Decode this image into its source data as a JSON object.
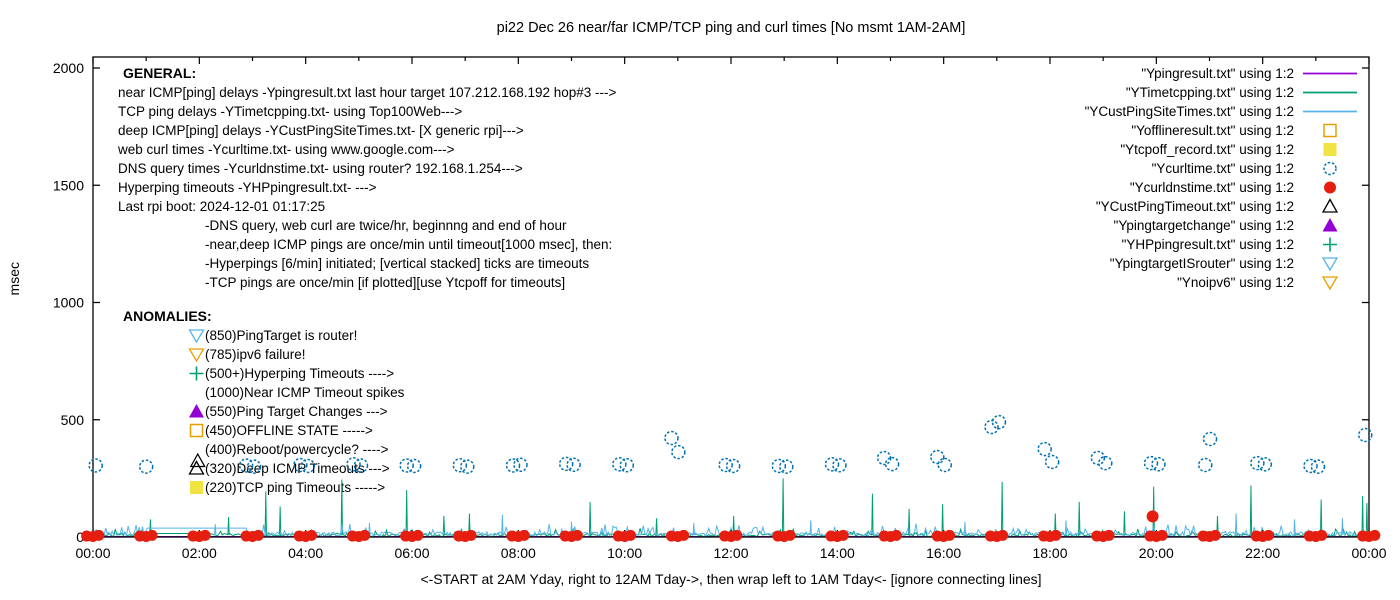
{
  "title": "pi22 Dec 26  near/far ICMP/TCP ping and curl times [No msmt 1AM-2AM]",
  "xnote": "<-START at 2AM Yday, right to 12AM Tday->, then wrap left to 1AM Tday<- [ignore connecting lines]",
  "general": {
    "header": "GENERAL:",
    "lines": [
      "near ICMP[ping] delays -Ypingresult.txt last hour target 107.212.168.192 hop#3 --->",
      "TCP ping delays -YTimetcpping.txt- using Top100Web--->",
      "deep ICMP[ping] delays -YCustPingSiteTimes.txt- [X generic rpi]--->",
      "web curl times -Ycurltime.txt- using www.google.com--->",
      "DNS query times -Ycurldnstime.txt- using router? 192.168.1.254--->",
      "Hyperping timeouts -YHPpingresult.txt- --->",
      "Last rpi boot: 2024-12-01 01:17:25"
    ],
    "notes": [
      "-DNS query, web curl are twice/hr, beginnng and end of hour",
      "-near,deep ICMP pings are once/min until timeout[1000 msec], then:",
      " -Hyperpings [6/min] initiated; [vertical stacked] ticks are timeouts",
      "-TCP pings are once/min [if plotted][use Ytcpoff for timeouts]"
    ]
  },
  "anomalies": {
    "header": "ANOMALIES:",
    "rows": [
      {
        "marker": "open-triangle-down",
        "color": "#56b4e9",
        "text": "(850)PingTarget is router!"
      },
      {
        "marker": "open-triangle-down",
        "color": "#e69f00",
        "text": "(785)ipv6 failure!"
      },
      {
        "marker": "plus",
        "color": "#009e73",
        "text": "(500+)Hyperping Timeouts ---->"
      },
      {
        "marker": "none",
        "color": "#000000",
        "text": "(1000)Near ICMP Timeout spikes"
      },
      {
        "marker": "filled-triangle-up",
        "color": "#9400d3",
        "text": "(550)Ping Target Changes --->"
      },
      {
        "marker": "open-square",
        "color": "#e69f00",
        "text": "(450)OFFLINE STATE ----->"
      },
      {
        "marker": "none",
        "color": "#000000",
        "text": "(400)Reboot/powercycle? ---->"
      },
      {
        "marker": "open-triangle-up",
        "color": "#000000",
        "text": "(320)Deep ICMP Timeouts --->"
      },
      {
        "marker": "filled-square",
        "color": "#f0e442",
        "text": "(220)TCP ping Timeouts ----->"
      }
    ]
  },
  "legend": {
    "entries": [
      {
        "label": "\"Ypingresult.txt\" using 1:2",
        "swatch": "line",
        "color": "#9400d3"
      },
      {
        "label": "\"YTimetcpping.txt\" using 1:2",
        "swatch": "line",
        "color": "#009e73"
      },
      {
        "label": "\"YCustPingSiteTimes.txt\" using 1:2",
        "swatch": "line",
        "color": "#56b4e9"
      },
      {
        "label": "\"Yofflineresult.txt\" using 1:2",
        "swatch": "open-square",
        "color": "#e69f00"
      },
      {
        "label": "\"Ytcpoff_record.txt\" using 1:2",
        "swatch": "filled-square",
        "color": "#f0e442"
      },
      {
        "label": "\"Ycurltime.txt\" using 1:2",
        "swatch": "open-circle",
        "color": "#0072b2"
      },
      {
        "label": "\"Ycurldnstime.txt\" using 1:2",
        "swatch": "filled-circle",
        "color": "#e51e10"
      },
      {
        "label": "\"YCustPingTimeout.txt\" using 1:2",
        "swatch": "open-triangle-up",
        "color": "#000000"
      },
      {
        "label": "\"Ypingtargetchange\" using 1:2",
        "swatch": "filled-triangle-up",
        "color": "#9400d3"
      },
      {
        "label": "\"YHPpingresult.txt\" using 1:2",
        "swatch": "plus",
        "color": "#009e73"
      },
      {
        "label": "\"YpingtargetISrouter\" using 1:2",
        "swatch": "open-triangle-down",
        "color": "#56b4e9"
      },
      {
        "label": "\"Ynoipv6\" using 1:2",
        "swatch": "open-triangle-down",
        "color": "#e69f00"
      }
    ]
  },
  "chart_data": {
    "type": "line+scatter time series",
    "title": "pi22 Dec 26  near/far ICMP/TCP ping and curl times [No msmt 1AM-2AM]",
    "ylabel": "msec",
    "xlabel": "",
    "grid": false,
    "legend_position": "top-right, outside-style column",
    "y_axis": {
      "range": [
        0,
        2000
      ],
      "ticks": [
        0,
        500,
        1000,
        1500,
        2000
      ],
      "tick_labels": [
        "0",
        "500",
        "1000",
        "1500",
        "2000"
      ]
    },
    "x_axis": {
      "range_hours": [
        0,
        24
      ],
      "major_every_hours": 2,
      "minor_every_hours": 1,
      "tick_labels": [
        "00:00",
        "02:00",
        "04:00",
        "06:00",
        "08:00",
        "10:00",
        "12:00",
        "14:00",
        "16:00",
        "18:00",
        "20:00",
        "22:00",
        "00:00"
      ]
    },
    "series": [
      {
        "name": "Ypingresult.txt (near ICMP ping)",
        "type": "line",
        "color": "#9400d3",
        "description": "flat baseline ~2 msec across full range"
      },
      {
        "name": "YTimetcpping.txt (TCP ping)",
        "type": "noisy-line",
        "color": "#009e73",
        "noise_base_msec": [
          1,
          14
        ],
        "gap_hours": [
          1.0,
          2.05
        ],
        "gap_flat_msec": 15,
        "spikes_hour_msec": [
          [
            1.08,
            75
          ],
          [
            2.55,
            85
          ],
          [
            3.25,
            195
          ],
          [
            3.52,
            130
          ],
          [
            4.68,
            245
          ],
          [
            5.9,
            200
          ],
          [
            6.6,
            90
          ],
          [
            7.08,
            100
          ],
          [
            9.35,
            150
          ],
          [
            10.6,
            80
          ],
          [
            12.05,
            90
          ],
          [
            12.98,
            250
          ],
          [
            14.66,
            185
          ],
          [
            15.35,
            120
          ],
          [
            15.98,
            140
          ],
          [
            17.1,
            235
          ],
          [
            18.1,
            100
          ],
          [
            18.55,
            150
          ],
          [
            19.4,
            110
          ],
          [
            19.95,
            215
          ],
          [
            21.15,
            90
          ],
          [
            21.78,
            220
          ],
          [
            23.1,
            160
          ],
          [
            23.88,
            175
          ],
          [
            23.96,
            145
          ]
        ]
      },
      {
        "name": "YCustPingSiteTimes.txt (deep ICMP ping)",
        "type": "noisy-line",
        "color": "#56b4e9",
        "noise_base_msec": [
          4,
          22
        ],
        "gap_hours": [
          1.0,
          2.9
        ],
        "gap_flat_msec": 38,
        "spikes_hour_msec": [
          [
            2.3,
            55
          ],
          [
            5.2,
            60
          ],
          [
            7.7,
            95
          ],
          [
            9.0,
            65
          ],
          [
            11.3,
            60
          ],
          [
            13.5,
            70
          ],
          [
            16.4,
            65
          ],
          [
            18.3,
            70
          ],
          [
            21.5,
            100
          ],
          [
            22.6,
            75
          ],
          [
            23.5,
            80
          ]
        ]
      },
      {
        "name": "Ycurltime.txt (web curl)",
        "type": "scatter-open-circle",
        "color": "#0072b2",
        "points_hour_msec": [
          [
            0.05,
            305
          ],
          [
            1.0,
            300
          ],
          [
            2.88,
            305
          ],
          [
            3.03,
            300
          ],
          [
            3.9,
            307
          ],
          [
            4.04,
            303
          ],
          [
            4.9,
            310
          ],
          [
            5.04,
            305
          ],
          [
            5.9,
            305
          ],
          [
            6.04,
            303
          ],
          [
            6.9,
            306
          ],
          [
            7.04,
            300
          ],
          [
            7.9,
            305
          ],
          [
            8.04,
            308
          ],
          [
            8.9,
            312
          ],
          [
            9.04,
            308
          ],
          [
            9.9,
            310
          ],
          [
            10.04,
            306
          ],
          [
            10.88,
            422
          ],
          [
            11.01,
            362
          ],
          [
            11.9,
            307
          ],
          [
            12.04,
            303
          ],
          [
            12.9,
            303
          ],
          [
            13.04,
            300
          ],
          [
            13.9,
            310
          ],
          [
            14.04,
            306
          ],
          [
            14.88,
            337
          ],
          [
            15.03,
            311
          ],
          [
            15.88,
            341
          ],
          [
            16.02,
            307
          ],
          [
            16.9,
            469
          ],
          [
            17.04,
            490
          ],
          [
            17.9,
            375
          ],
          [
            18.04,
            320
          ],
          [
            18.9,
            337
          ],
          [
            19.04,
            315
          ],
          [
            19.9,
            315
          ],
          [
            20.04,
            310
          ],
          [
            20.92,
            307
          ],
          [
            21.01,
            418
          ],
          [
            21.9,
            315
          ],
          [
            22.04,
            310
          ],
          [
            22.9,
            303
          ],
          [
            23.04,
            300
          ],
          [
            23.93,
            435
          ]
        ]
      },
      {
        "name": "Ycurldnstime.txt (DNS query)",
        "type": "scatter-filled-circle",
        "color": "#e51e10",
        "cluster_hours": [
          0,
          1,
          2,
          3,
          4,
          5,
          6,
          7,
          8,
          9,
          10,
          11,
          12,
          13,
          14,
          15,
          16,
          17,
          18,
          19,
          20,
          21,
          22,
          23,
          24
        ],
        "cluster_pattern_dh_msec": [
          [
            -0.12,
            4
          ],
          [
            0.0,
            2
          ],
          [
            0.11,
            7
          ]
        ],
        "extra_points_hour_msec": [
          [
            19.93,
            88
          ]
        ]
      },
      {
        "name": "YCustPingTimeout.txt",
        "type": "scatter-open-triangle-up",
        "color": "#000000",
        "points_hour_msec": [
          [
            1.97,
            324
          ]
        ]
      }
    ],
    "anomaly_marker_column_px_x": 198
  }
}
